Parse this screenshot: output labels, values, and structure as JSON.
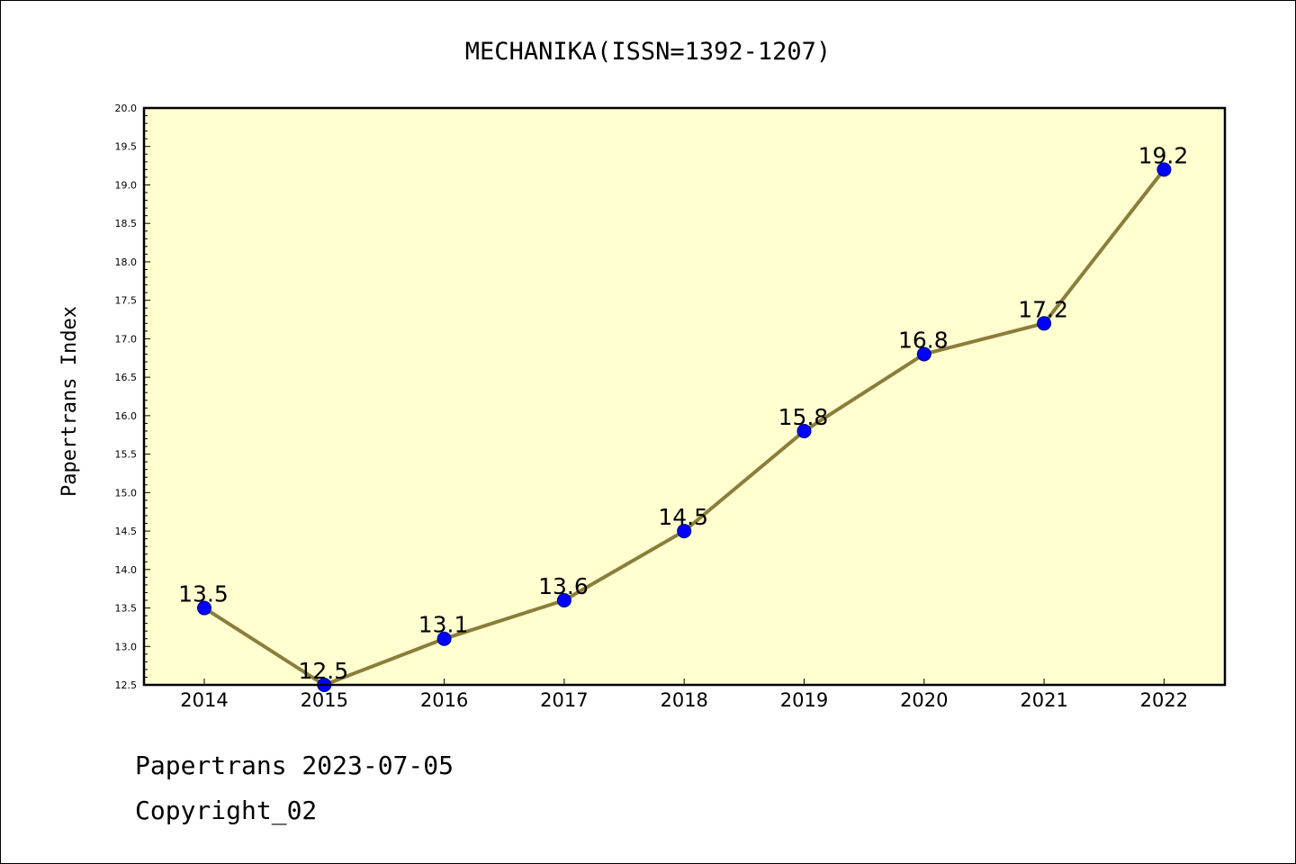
{
  "chart_data": {
    "type": "line",
    "title": "MECHANIKA(ISSN=1392-1207)",
    "xlabel": "",
    "ylabel": "Papertrans Index",
    "categories": [
      "2014",
      "2015",
      "2016",
      "2017",
      "2018",
      "2019",
      "2020",
      "2021",
      "2022"
    ],
    "series": [
      {
        "values": [
          13.5,
          12.5,
          13.1,
          13.6,
          14.5,
          15.8,
          16.8,
          17.2,
          19.2
        ]
      }
    ],
    "data_labels": [
      "13.5",
      "12.5",
      "13.1",
      "13.6",
      "14.5",
      "15.8",
      "16.8",
      "17.2",
      "19.2"
    ],
    "ylim": [
      12.5,
      20.0
    ],
    "yticks": [
      "12.5",
      "13.0",
      "13.5",
      "14.0",
      "14.5",
      "15.0",
      "15.5",
      "16.0",
      "16.5",
      "17.0",
      "17.5",
      "18.0",
      "18.5",
      "19.0",
      "19.5",
      "20.0"
    ],
    "grid": false,
    "legend": "none",
    "colors": {
      "plot_background": "#FFFFD0",
      "line": "#8B7D3A",
      "marker": "#0000FF",
      "marker_edge": "#000080"
    }
  },
  "footer": {
    "source": "Papertrans 2023-07-05",
    "copyright": "Copyright_02"
  }
}
